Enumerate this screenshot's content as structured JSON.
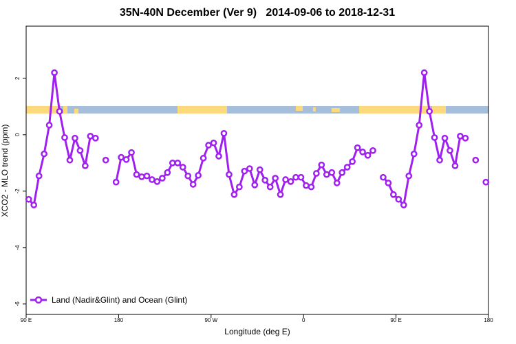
{
  "chart_data": {
    "type": "line",
    "title": "35N-40N December (Ver 9)   2014-09-06 to 2018-12-31",
    "xlabel": "Longitude (deg E)",
    "ylabel": "XCO2 - MLO trend (ppm)",
    "xlim": [
      90,
      540
    ],
    "xticks": [
      {
        "value": 90,
        "label": "90 E"
      },
      {
        "value": 180,
        "label": "180"
      },
      {
        "value": 270,
        "label": "90 W"
      },
      {
        "value": 360,
        "label": "0"
      },
      {
        "value": 450,
        "label": "90 E"
      },
      {
        "value": 540,
        "label": "180"
      }
    ],
    "ylim": [
      -6.37,
      3.85
    ],
    "yticks": [
      2,
      0,
      -2,
      -4,
      -6
    ],
    "legend": "bottom-left",
    "x": [
      92.5,
      97.5,
      102.5,
      107.5,
      112.5,
      117.5,
      122.5,
      127.5,
      132.5,
      137.5,
      142.5,
      147.5,
      152.5,
      157.5,
      162.5,
      167.5,
      172.5,
      177.5,
      182.5,
      187.5,
      192.5,
      197.5,
      202.5,
      207.5,
      212.5,
      217.5,
      222.5,
      227.5,
      232.5,
      237.5,
      242.5,
      247.5,
      252.5,
      257.5,
      262.5,
      267.5,
      272.5,
      277.5,
      282.5,
      287.5,
      292.5,
      297.5,
      302.5,
      307.5,
      312.5,
      317.5,
      322.5,
      327.5,
      332.5,
      337.5,
      342.5,
      347.5,
      352.5,
      357.5,
      362.5,
      367.5,
      372.5,
      377.5,
      382.5,
      387.5,
      392.5,
      397.5,
      402.5,
      407.5,
      412.5,
      417.5,
      422.5,
      427.5,
      432.5,
      437.5,
      442.5,
      447.5,
      452.5,
      457.5,
      462.5,
      467.5,
      472.5,
      477.5,
      482.5,
      487.5,
      492.5,
      497.5,
      502.5,
      507.5,
      512.5,
      517.5,
      522.5,
      527.5,
      532.5,
      537.5
    ],
    "series": [
      {
        "name": "Land (Nadir&Glint) and Ocean (Glint)",
        "color": "#a020f0",
        "values": [
          -2.29,
          -2.49,
          -1.46,
          -0.68,
          0.34,
          2.2,
          0.83,
          -0.1,
          -0.9,
          -0.12,
          -0.56,
          -1.1,
          -0.05,
          -0.12,
          null,
          -0.9,
          null,
          -1.68,
          -0.8,
          -0.88,
          -0.63,
          -1.41,
          -1.49,
          -1.46,
          -1.59,
          -1.66,
          -1.54,
          -1.34,
          -1.0,
          -1.0,
          -1.15,
          -1.46,
          -1.76,
          -1.44,
          -0.83,
          -0.37,
          -0.29,
          -0.76,
          0.05,
          -1.41,
          -2.12,
          -1.85,
          -1.29,
          -1.2,
          -1.78,
          -1.24,
          -1.61,
          -1.85,
          -1.54,
          -2.12,
          -1.59,
          -1.66,
          -1.51,
          -1.51,
          -1.8,
          -1.85,
          -1.37,
          -1.07,
          -1.41,
          -1.34,
          -1.71,
          -1.34,
          -1.15,
          -0.95,
          -0.46,
          -0.61,
          -0.73,
          -0.56,
          null,
          -1.51,
          -1.71,
          -2.12,
          -2.29,
          -2.49,
          -1.46,
          -0.68,
          0.34,
          2.2,
          0.83,
          -0.1,
          -0.9,
          -0.12,
          -0.56,
          -1.1,
          -0.05,
          -0.12,
          null,
          -0.9,
          null,
          -1.68
        ]
      }
    ]
  }
}
